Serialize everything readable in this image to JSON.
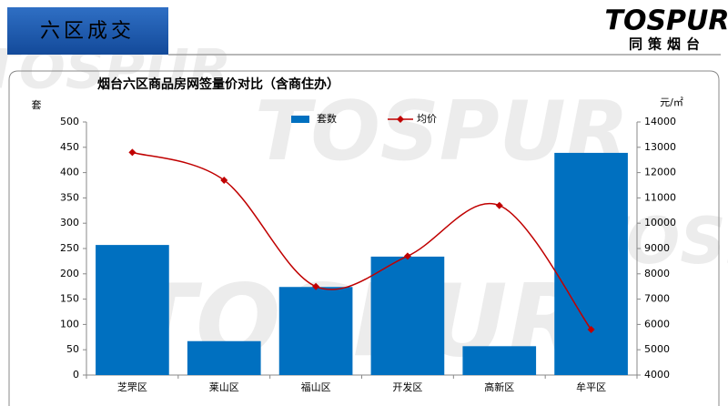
{
  "header": {
    "title": "六区成交",
    "logo": "TOSPUR",
    "logo_sub": "同策烟台",
    "watermark": "TOSPUR"
  },
  "chart_data": {
    "type": "bar",
    "title": "烟台六区商品房网签量价对比（含商住办）",
    "ylabel": "套",
    "y2label": "元/㎡",
    "categories": [
      "芝罘区",
      "莱山区",
      "福山区",
      "开发区",
      "高新区",
      "牟平区"
    ],
    "series": [
      {
        "name": "套数",
        "type": "bar",
        "color": "#0070c0",
        "values": [
          257,
          67,
          174,
          234,
          57,
          439
        ]
      },
      {
        "name": "均价",
        "type": "line",
        "axis": "y2",
        "color": "#c00000",
        "values": [
          12800,
          11700,
          7500,
          8700,
          10700,
          5800
        ]
      }
    ],
    "ylim": [
      0,
      500
    ],
    "yticks": [
      0,
      50,
      100,
      150,
      200,
      250,
      300,
      350,
      400,
      450,
      500
    ],
    "y2lim": [
      4000,
      14000
    ],
    "y2ticks": [
      4000,
      5000,
      6000,
      7000,
      8000,
      9000,
      10000,
      11000,
      12000,
      13000,
      14000
    ],
    "legend": "top"
  }
}
